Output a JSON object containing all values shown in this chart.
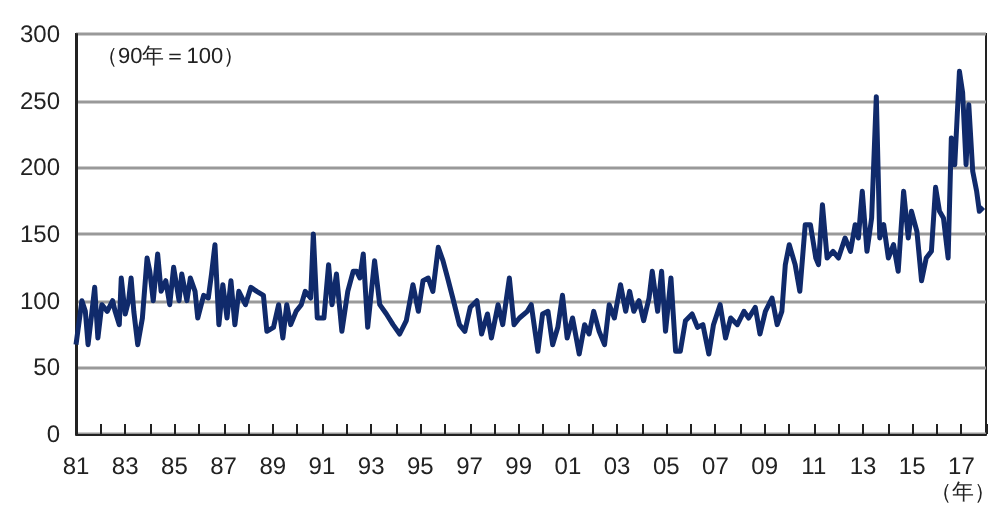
{
  "chart_data": {
    "type": "line",
    "xlabel": "（年）",
    "annotations": [
      "（90年＝100）"
    ],
    "x": [
      1981.0,
      1981.11,
      1981.24,
      1981.38,
      1981.49,
      1981.65,
      1981.76,
      1981.89,
      1982.05,
      1982.27,
      1982.49,
      1982.59,
      1982.76,
      1982.84,
      1983.0,
      1983.14,
      1983.24,
      1983.35,
      1983.51,
      1983.7,
      1983.89,
      1984.0,
      1984.14,
      1984.32,
      1984.46,
      1984.65,
      1984.81,
      1984.97,
      1985.19,
      1985.3,
      1985.51,
      1985.65,
      1985.84,
      1985.95,
      1986.19,
      1986.38,
      1986.51,
      1986.65,
      1986.81,
      1986.97,
      1987.14,
      1987.3,
      1987.46,
      1987.62,
      1987.89,
      1988.11,
      1988.35,
      1988.62,
      1988.76,
      1989.03,
      1989.24,
      1989.41,
      1989.57,
      1989.73,
      1989.95,
      1990.16,
      1990.32,
      1990.54,
      1990.65,
      1990.81,
      1991.08,
      1991.27,
      1991.41,
      1991.59,
      1991.81,
      1992.05,
      1992.27,
      1992.41,
      1992.54,
      1992.68,
      1992.86,
      1993.14,
      1993.35,
      1993.62,
      1993.89,
      1994.16,
      1994.43,
      1994.7,
      1994.92,
      1995.11,
      1995.32,
      1995.51,
      1995.73,
      1995.92,
      1996.11,
      1996.32,
      1996.59,
      1996.81,
      1997.03,
      1997.3,
      1997.49,
      1997.73,
      1997.89,
      1998.16,
      1998.35,
      1998.62,
      1998.81,
      1999.03,
      1999.35,
      1999.51,
      1999.78,
      1999.97,
      2000.19,
      2000.38,
      2000.59,
      2000.78,
      2000.97,
      2001.19,
      2001.46,
      2001.68,
      2001.86,
      2002.05,
      2002.27,
      2002.49,
      2002.68,
      2002.89,
      2003.14,
      2003.35,
      2003.51,
      2003.68,
      2003.89,
      2004.08,
      2004.3,
      2004.43,
      2004.65,
      2004.81,
      2004.97,
      2005.19,
      2005.38,
      2005.57,
      2005.78,
      2006.05,
      2006.27,
      2006.49,
      2006.73,
      2006.92,
      2007.19,
      2007.41,
      2007.62,
      2007.89,
      2008.16,
      2008.35,
      2008.62,
      2008.81,
      2009.03,
      2009.3,
      2009.51,
      2009.7,
      2009.84,
      2010.0,
      2010.24,
      2010.43,
      2010.65,
      2010.86,
      2011.08,
      2011.19,
      2011.35,
      2011.54,
      2011.78,
      2012.0,
      2012.27,
      2012.49,
      2012.68,
      2012.81,
      2012.97,
      2013.16,
      2013.35,
      2013.54,
      2013.68,
      2013.84,
      2014.03,
      2014.24,
      2014.43,
      2014.65,
      2014.84,
      2014.97,
      2015.19,
      2015.38,
      2015.57,
      2015.78,
      2015.95,
      2016.11,
      2016.27,
      2016.46,
      2016.59,
      2016.73,
      2016.92,
      2017.05,
      2017.19,
      2017.3,
      2017.46,
      2017.62,
      2017.73,
      2017.89
    ],
    "series": [
      {
        "color": "#102a6b",
        "values": [
          67,
          82,
          100,
          92,
          67,
          92,
          110,
          72,
          97,
          92,
          100,
          92,
          82,
          117,
          90,
          100,
          117,
          92,
          67,
          87,
          132,
          122,
          100,
          135,
          107,
          115,
          97,
          125,
          100,
          120,
          100,
          117,
          107,
          87,
          104,
          102,
          120,
          142,
          82,
          112,
          87,
          115,
          82,
          107,
          97,
          110,
          107,
          104,
          77,
          80,
          97,
          72,
          97,
          82,
          92,
          97,
          107,
          102,
          150,
          87,
          87,
          127,
          97,
          120,
          77,
          107,
          122,
          122,
          117,
          135,
          80,
          130,
          97,
          90,
          82,
          75,
          85,
          112,
          92,
          115,
          117,
          107,
          140,
          130,
          117,
          102,
          82,
          77,
          95,
          100,
          75,
          90,
          72,
          97,
          82,
          117,
          82,
          87,
          92,
          97,
          62,
          90,
          92,
          67,
          80,
          104,
          72,
          87,
          60,
          82,
          75,
          92,
          77,
          67,
          97,
          87,
          112,
          92,
          107,
          92,
          100,
          85,
          102,
          122,
          92,
          122,
          77,
          117,
          62,
          62,
          85,
          90,
          80,
          82,
          60,
          82,
          97,
          72,
          87,
          82,
          92,
          87,
          95,
          75,
          92,
          102,
          82,
          92,
          127,
          142,
          127,
          107,
          157,
          157,
          132,
          127,
          172,
          132,
          137,
          132,
          147,
          137,
          157,
          147,
          182,
          137,
          162,
          253,
          147,
          157,
          132,
          142,
          122,
          182,
          147,
          167,
          152,
          115,
          132,
          137,
          185,
          167,
          162,
          132,
          222,
          202,
          272,
          256,
          202,
          247,
          197,
          182,
          167,
          170
        ]
      }
    ],
    "xlim": [
      1981,
      2018
    ],
    "xticks": [
      {
        "value": 1981,
        "label": "81"
      },
      {
        "value": 1982,
        "label": null
      },
      {
        "value": 1983,
        "label": "83"
      },
      {
        "value": 1984,
        "label": null
      },
      {
        "value": 1985,
        "label": "85"
      },
      {
        "value": 1986,
        "label": null
      },
      {
        "value": 1987,
        "label": "87"
      },
      {
        "value": 1988,
        "label": null
      },
      {
        "value": 1989,
        "label": "89"
      },
      {
        "value": 1990,
        "label": null
      },
      {
        "value": 1991,
        "label": "91"
      },
      {
        "value": 1992,
        "label": null
      },
      {
        "value": 1993,
        "label": "93"
      },
      {
        "value": 1994,
        "label": null
      },
      {
        "value": 1995,
        "label": "95"
      },
      {
        "value": 1996,
        "label": null
      },
      {
        "value": 1997,
        "label": "97"
      },
      {
        "value": 1998,
        "label": null
      },
      {
        "value": 1999,
        "label": "99"
      },
      {
        "value": 2000,
        "label": null
      },
      {
        "value": 2001,
        "label": "01"
      },
      {
        "value": 2002,
        "label": null
      },
      {
        "value": 2003,
        "label": "03"
      },
      {
        "value": 2004,
        "label": null
      },
      {
        "value": 2005,
        "label": "05"
      },
      {
        "value": 2006,
        "label": null
      },
      {
        "value": 2007,
        "label": "07"
      },
      {
        "value": 2008,
        "label": null
      },
      {
        "value": 2009,
        "label": "09"
      },
      {
        "value": 2010,
        "label": null
      },
      {
        "value": 2011,
        "label": "11"
      },
      {
        "value": 2012,
        "label": null
      },
      {
        "value": 2013,
        "label": "13"
      },
      {
        "value": 2014,
        "label": null
      },
      {
        "value": 2015,
        "label": "15"
      },
      {
        "value": 2016,
        "label": null
      },
      {
        "value": 2017,
        "label": "17"
      },
      {
        "value": 2018,
        "label": null
      }
    ],
    "ylim": [
      0,
      300
    ],
    "yticks": [
      0,
      50,
      100,
      150,
      200,
      250,
      300
    ],
    "grid": "y",
    "marker": "none",
    "line_style": "solid"
  }
}
